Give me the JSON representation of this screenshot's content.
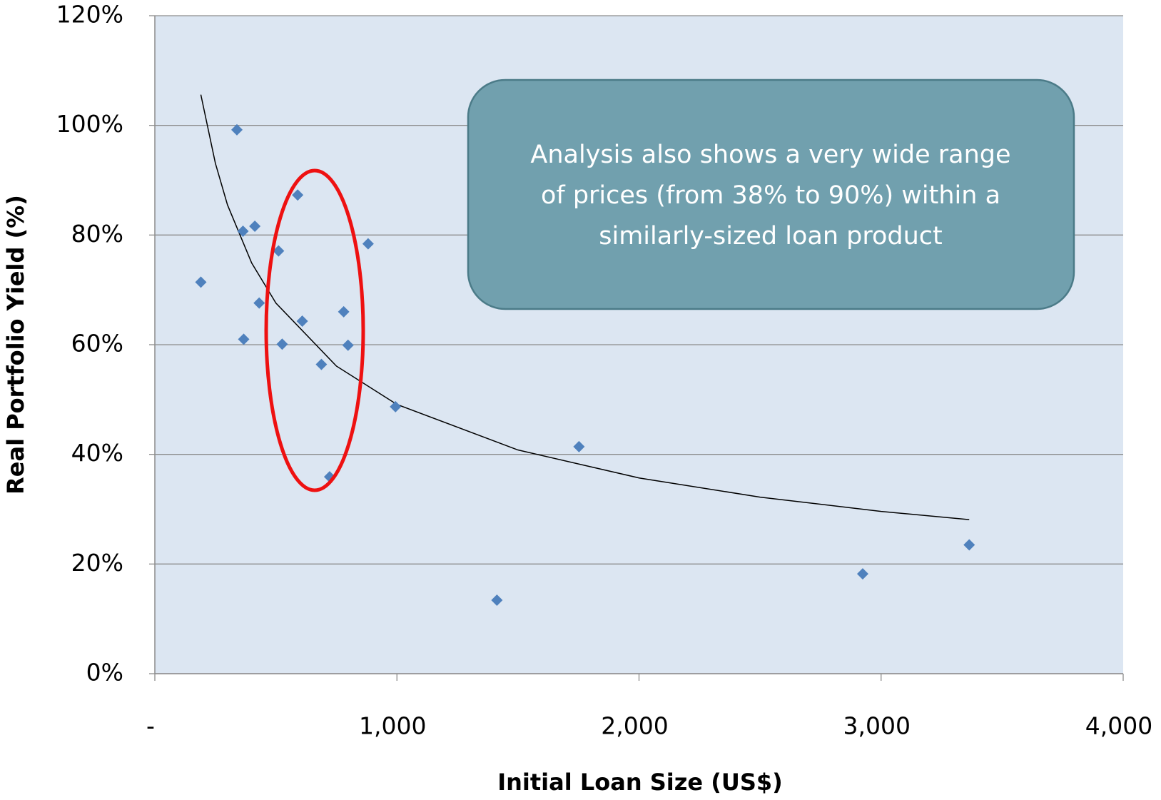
{
  "chart_data": {
    "type": "scatter",
    "x_label": "Initial Loan Size (US$)",
    "y_label": "Real Portfolio Yield (%)",
    "xlim": [
      0,
      4000
    ],
    "ylim": [
      0,
      120
    ],
    "xticks": [
      {
        "value": 0,
        "label": "-"
      },
      {
        "value": 1000,
        "label": "1,000"
      },
      {
        "value": 2000,
        "label": "2,000"
      },
      {
        "value": 3000,
        "label": "3,000"
      },
      {
        "value": 4000,
        "label": "4,000"
      }
    ],
    "yticks": [
      {
        "value": 0,
        "label": "0%"
      },
      {
        "value": 20,
        "label": "20%"
      },
      {
        "value": 40,
        "label": "40%"
      },
      {
        "value": 60,
        "label": "60%"
      },
      {
        "value": 80,
        "label": "80%"
      },
      {
        "value": 100,
        "label": "100%"
      },
      {
        "value": 120,
        "label": "120%"
      }
    ],
    "grid": true,
    "background": "#dce6f2",
    "series": [
      {
        "color": "#4f81bd",
        "x": [
          190,
          339,
          364,
          413,
          431,
          367,
          511,
          526,
          590,
          609,
          688,
          722,
          780,
          798,
          881,
          994,
          1413,
          1752,
          2924,
          3364
        ],
        "values": [
          71.4,
          99.2,
          80.7,
          81.6,
          67.6,
          61.0,
          77.1,
          60.1,
          87.3,
          64.3,
          56.4,
          35.9,
          66.0,
          59.9,
          78.4,
          48.7,
          13.4,
          41.4,
          18.2,
          23.5
        ]
      }
    ],
    "trendline": {
      "color": "#000000",
      "x": [
        190,
        250,
        300,
        400,
        500,
        750,
        1000,
        1500,
        2000,
        2500,
        3000,
        3364
      ],
      "values": [
        105.6,
        93.1,
        85.5,
        74.9,
        67.6,
        56.1,
        49.1,
        40.8,
        35.7,
        32.2,
        29.6,
        28.1
      ]
    },
    "annotation": {
      "lines": [
        "Analysis also shows a very wide range",
        "of prices (from 38% to 90%) within a",
        "similarly-sized loan product"
      ]
    }
  }
}
